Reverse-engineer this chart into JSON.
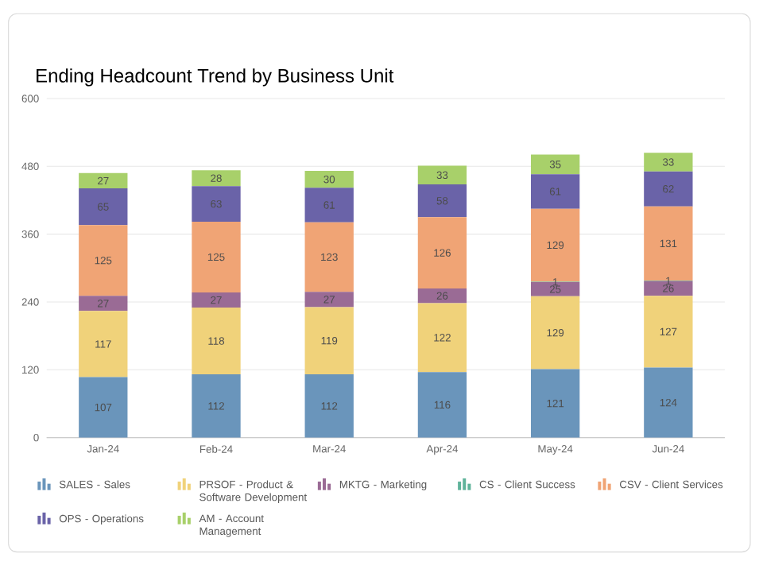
{
  "chart_data": {
    "type": "bar",
    "title": "Ending Headcount Trend by Business Unit",
    "stacked": true,
    "data_labels": true,
    "grid": "y",
    "legend": "bottom",
    "categories": [
      "Jan-24",
      "Feb-24",
      "Mar-24",
      "Apr-24",
      "May-24",
      "Jun-24"
    ],
    "ylim": [
      0,
      600
    ],
    "yticks": [
      0,
      120,
      240,
      360,
      480,
      600
    ],
    "series": [
      {
        "name": "SALES - Sales",
        "color": "#6a95bb",
        "values": [
          107,
          112,
          112,
          116,
          121,
          124
        ]
      },
      {
        "name": "PRSOF - Product & Software Development",
        "color": "#f0d27a",
        "values": [
          117,
          118,
          119,
          122,
          129,
          127
        ]
      },
      {
        "name": "MKTG - Marketing",
        "color": "#9a6b95",
        "values": [
          27,
          27,
          27,
          26,
          25,
          26
        ]
      },
      {
        "name": "CS - Client Success",
        "color": "#5fb39a",
        "values": [
          null,
          null,
          null,
          null,
          1,
          1
        ]
      },
      {
        "name": "CSV - Client Services",
        "color": "#f0a475",
        "values": [
          125,
          125,
          123,
          126,
          129,
          131
        ]
      },
      {
        "name": "OPS - Operations",
        "color": "#6a63a8",
        "values": [
          65,
          63,
          61,
          58,
          61,
          62
        ]
      },
      {
        "name": "AM - Account Management",
        "color": "#a8d06a",
        "values": [
          27,
          28,
          30,
          33,
          35,
          33
        ]
      }
    ]
  }
}
